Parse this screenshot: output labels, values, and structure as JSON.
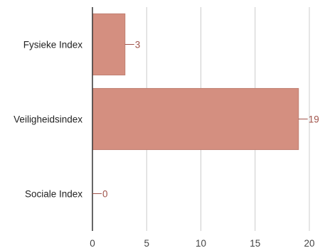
{
  "chart_data": {
    "type": "bar",
    "orientation": "horizontal",
    "categories": [
      "Fysieke Index",
      "Veiligheidsindex",
      "Sociale Index"
    ],
    "values": [
      3,
      19,
      0
    ],
    "xlim": [
      0,
      20
    ],
    "xticks": [
      0,
      5,
      10,
      15,
      20
    ],
    "grid": true,
    "legend": "none",
    "data_labels": true,
    "colors": {
      "bar": "#d48f80",
      "bar_edge": "#c07f71",
      "label": "#a0534a"
    }
  }
}
